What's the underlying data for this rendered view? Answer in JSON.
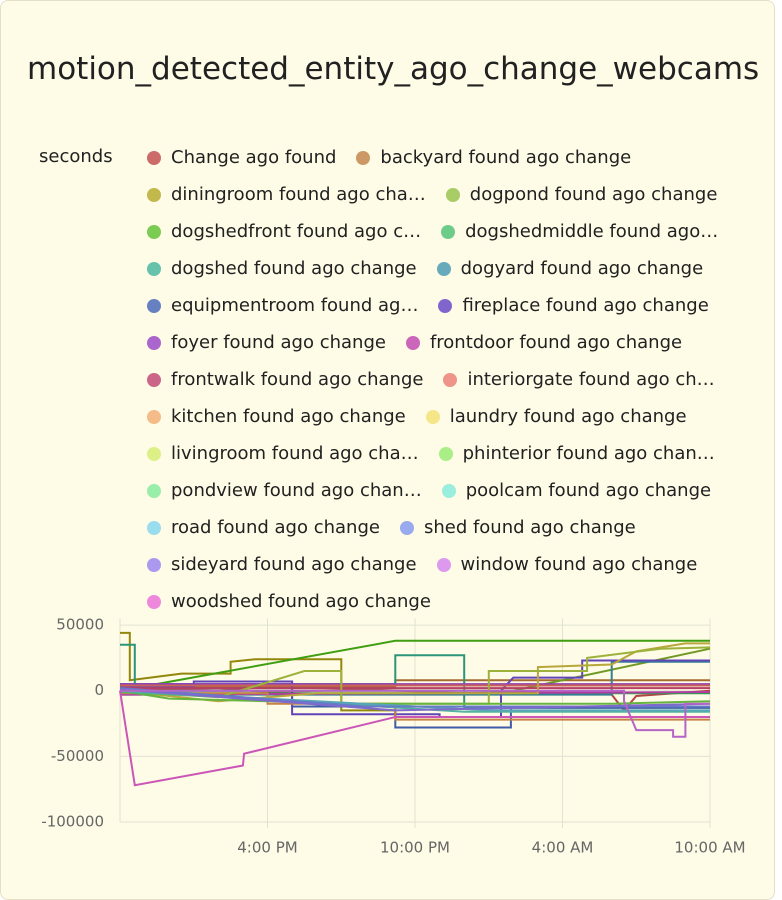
{
  "chart_data": {
    "type": "line",
    "title": "motion_detected_entity_ago_change_webcams",
    "y_label": "seconds",
    "xlim": [
      10,
      34
    ],
    "ylim": [
      -100000,
      55000
    ],
    "xticks": [
      {
        "value": 16,
        "label": "4:00 PM"
      },
      {
        "value": 22,
        "label": "10:00 PM"
      },
      {
        "value": 28,
        "label": "4:00 AM"
      },
      {
        "value": 34,
        "label": "10:00 AM"
      }
    ],
    "yticks": [
      50000,
      0,
      -50000,
      -100000
    ],
    "grid": true,
    "series": [
      {
        "name": "Change ago found",
        "color": "#cd6a6a",
        "x": [
          10,
          14,
          16,
          20,
          24,
          28,
          30,
          30.5,
          31,
          34
        ],
        "values": [
          0,
          2000,
          -1000,
          1000,
          -2000,
          0,
          -3000,
          -15000,
          -4000,
          0
        ]
      },
      {
        "name": "backyard found ago change",
        "color": "#cc9966",
        "x": [
          10,
          21.2,
          21.2,
          34
        ],
        "values": [
          3000,
          3000,
          8000,
          8000
        ]
      },
      {
        "name": "diningroom found ago cha…",
        "color": "#c2b84c",
        "x": [
          10,
          10.4,
          10.4,
          12.5,
          14.5,
          14.5,
          15.5,
          19,
          19,
          21.2,
          21.2,
          34
        ],
        "values": [
          44000,
          44000,
          8000,
          13000,
          13000,
          22000,
          24000,
          24000,
          -15000,
          -15000,
          -20000,
          -20000
        ]
      },
      {
        "name": "dogpond found ago change",
        "color": "#a8cc66",
        "x": [
          10,
          26,
          34
        ],
        "values": [
          0,
          0,
          32000
        ]
      },
      {
        "name": "dogshedfront found ago c…",
        "color": "#7acc52",
        "x": [
          10,
          21.2,
          34
        ],
        "values": [
          0,
          38000,
          38000
        ]
      },
      {
        "name": "dogshedmiddle found ago…",
        "color": "#6ccc8a",
        "x": [
          10,
          34
        ],
        "values": [
          -2000,
          -2000
        ]
      },
      {
        "name": "dogshed found ago change",
        "color": "#66c2aa",
        "x": [
          10,
          10.6,
          10.6,
          15,
          15,
          21.2,
          21.2,
          24,
          24,
          34
        ],
        "values": [
          35000,
          35000,
          0,
          0,
          5000,
          5000,
          27000,
          27000,
          -13000,
          -13000
        ]
      },
      {
        "name": "dogyard found ago change",
        "color": "#66aabb",
        "x": [
          10,
          30,
          30,
          34
        ],
        "values": [
          -3000,
          -3000,
          22000,
          22000
        ]
      },
      {
        "name": "equipmentroom found ag…",
        "color": "#6680c2",
        "x": [
          10,
          17,
          17,
          21.2,
          21.2,
          25.9,
          25.9,
          34
        ],
        "values": [
          5000,
          5000,
          -12000,
          -12000,
          -28000,
          -28000,
          -13000,
          -13000
        ]
      },
      {
        "name": "fireplace found ago change",
        "color": "#8066cc",
        "x": [
          10,
          13,
          13,
          17,
          17,
          23,
          23,
          25.5,
          25.5,
          26,
          28.8,
          28.8,
          34
        ],
        "values": [
          3000,
          3000,
          7000,
          7000,
          -18000,
          -18000,
          -20000,
          -20000,
          0,
          10000,
          10000,
          23000,
          23000
        ]
      },
      {
        "name": "foyer found ago change",
        "color": "#aa66cc",
        "x": [
          10,
          34
        ],
        "values": [
          5000,
          5000
        ]
      },
      {
        "name": "frontdoor found ago change",
        "color": "#cc66bb",
        "x": [
          10,
          34
        ],
        "values": [
          -3000,
          -1000
        ]
      },
      {
        "name": "frontwalk found ago change",
        "color": "#cc6688",
        "x": [
          10,
          34
        ],
        "values": [
          2000,
          2000
        ]
      },
      {
        "name": "interiorgate found ago ch…",
        "color": "#ee9488",
        "x": [
          10,
          34
        ],
        "values": [
          4000,
          4000
        ]
      },
      {
        "name": "kitchen found ago change",
        "color": "#f5bb88",
        "x": [
          10,
          16,
          16,
          21.2,
          21.2,
          34
        ],
        "values": [
          -2000,
          -2000,
          -10000,
          -10000,
          -22000,
          -22000
        ]
      },
      {
        "name": "laundry found ago change",
        "color": "#f5e688",
        "x": [
          10,
          14,
          18,
          27,
          27,
          30,
          31,
          33,
          34
        ],
        "values": [
          0,
          -8000,
          -2000,
          -2000,
          18000,
          20000,
          30000,
          36000,
          36000
        ]
      },
      {
        "name": "livingroom found ago cha…",
        "color": "#ddf088",
        "x": [
          10,
          14,
          17.5,
          19,
          19,
          25,
          25,
          29,
          29,
          32,
          34
        ],
        "values": [
          0,
          -5000,
          15000,
          15000,
          -10000,
          -10000,
          15000,
          15000,
          25000,
          32000,
          33000
        ]
      },
      {
        "name": "phinterior found ago chan…",
        "color": "#aaee88",
        "x": [
          10,
          12,
          20,
          30,
          34
        ],
        "values": [
          0,
          -6000,
          -10000,
          -10000,
          -8000
        ]
      },
      {
        "name": "pondview found ago chan…",
        "color": "#99eeaa",
        "x": [
          10,
          22,
          34
        ],
        "values": [
          -1000,
          -12000,
          -12000
        ]
      },
      {
        "name": "poolcam found ago change",
        "color": "#99eedd",
        "x": [
          10,
          24,
          34
        ],
        "values": [
          0,
          -16000,
          -16000
        ]
      },
      {
        "name": "road found ago change",
        "color": "#99ddee",
        "x": [
          10,
          25,
          34
        ],
        "values": [
          0,
          -15000,
          -15000
        ]
      },
      {
        "name": "shed found ago change",
        "color": "#99aaee",
        "x": [
          10,
          20,
          34
        ],
        "values": [
          2000,
          -12000,
          -12000
        ]
      },
      {
        "name": "sideyard found ago change",
        "color": "#aa99ee",
        "x": [
          10,
          21.2,
          34
        ],
        "values": [
          1000,
          -15000,
          -10000
        ]
      },
      {
        "name": "window found ago change",
        "color": "#dd99ee",
        "x": [
          10,
          30.5,
          30.5,
          31,
          32.5,
          32.5,
          33,
          33,
          34
        ],
        "values": [
          0,
          0,
          -8000,
          -30000,
          -30000,
          -35000,
          -35000,
          -10000,
          -10000
        ]
      },
      {
        "name": "woodshed found ago change",
        "color": "#ee88dd",
        "x": [
          10,
          10.6,
          15,
          15.05,
          21.2,
          34
        ],
        "values": [
          0,
          -72000,
          -57000,
          -48000,
          -20000,
          -20000
        ]
      }
    ]
  }
}
